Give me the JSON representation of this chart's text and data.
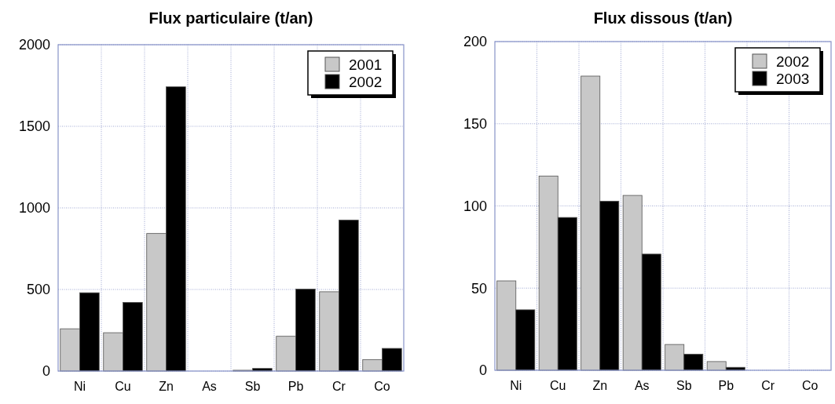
{
  "chart_data": [
    {
      "type": "bar",
      "title": "Flux particulaire (t/an)",
      "categories": [
        "Ni",
        "Cu",
        "Zn",
        "As",
        "Sb",
        "Pb",
        "Cr",
        "Co"
      ],
      "series": [
        {
          "name": "2001",
          "color": "#c8c8c8",
          "values": [
            259,
            235,
            843,
            0,
            5,
            213,
            486,
            70
          ]
        },
        {
          "name": "2002",
          "color": "#000000",
          "values": [
            480,
            421,
            1742,
            0,
            16,
            502,
            925,
            139
          ]
        }
      ],
      "ylim": [
        0,
        2000
      ],
      "yticks": [
        0,
        500,
        1000,
        1500,
        2000
      ],
      "grid": true,
      "legend": "top right"
    },
    {
      "type": "bar",
      "title": "Flux dissous (t/an)",
      "categories": [
        "Ni",
        "Cu",
        "Zn",
        "As",
        "Sb",
        "Pb",
        "Cr",
        "Co"
      ],
      "series": [
        {
          "name": "2002",
          "color": "#c8c8c8",
          "values": [
            54.4,
            118.2,
            179,
            106.4,
            15.7,
            5.3,
            0,
            0
          ]
        },
        {
          "name": "2003",
          "color": "#000000",
          "values": [
            36.8,
            93,
            102.9,
            70.7,
            9.8,
            1.8,
            0,
            0
          ]
        }
      ],
      "ylim": [
        0,
        200
      ],
      "yticks": [
        0,
        50,
        100,
        150,
        200
      ],
      "grid": true,
      "legend": "top right"
    }
  ]
}
